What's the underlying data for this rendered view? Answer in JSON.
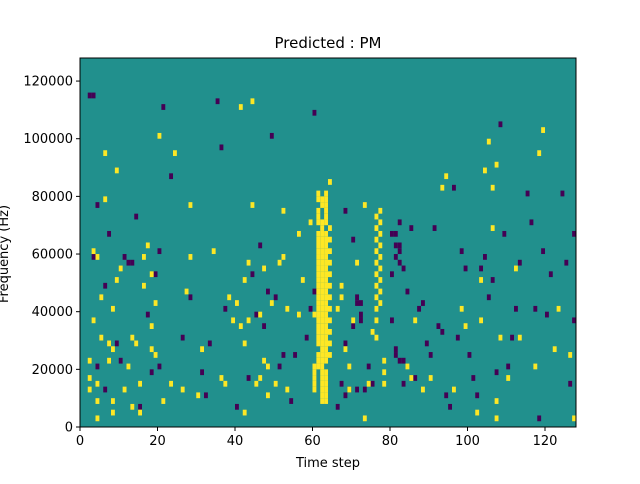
{
  "chart_data": {
    "type": "heatmap",
    "title": "Predicted : PM",
    "xlabel": "Time step",
    "ylabel": "Frequency (Hz)",
    "xlim": [
      0,
      128
    ],
    "ylim": [
      0,
      128000
    ],
    "x_ticks": [
      0,
      20,
      40,
      60,
      80,
      100,
      120
    ],
    "x_tick_labels": [
      "0",
      "20",
      "40",
      "60",
      "80",
      "100",
      "120"
    ],
    "y_ticks": [
      0,
      20000,
      40000,
      60000,
      80000,
      100000,
      120000
    ],
    "y_tick_labels": [
      "0",
      "20000",
      "40000",
      "60000",
      "80000",
      "100000",
      "120000"
    ],
    "grid": false,
    "legend": "none",
    "colors": {
      "background": "#21908d",
      "low": "#440154",
      "high": "#fde725"
    },
    "cell_width_steps": 1,
    "cell_height_hz": 2000,
    "yellow_cells": [
      [
        2,
        12
      ],
      [
        2,
        16
      ],
      [
        2,
        22
      ],
      [
        3,
        36
      ],
      [
        3,
        60
      ],
      [
        4,
        2
      ],
      [
        4,
        8
      ],
      [
        4,
        14
      ],
      [
        4,
        58
      ],
      [
        5,
        30
      ],
      [
        5,
        44
      ],
      [
        6,
        78
      ],
      [
        6,
        94
      ],
      [
        7,
        22
      ],
      [
        7,
        28
      ],
      [
        8,
        4
      ],
      [
        8,
        8
      ],
      [
        8,
        26
      ],
      [
        8,
        40
      ],
      [
        9,
        50
      ],
      [
        9,
        88
      ],
      [
        10,
        54
      ],
      [
        11,
        12
      ],
      [
        12,
        20
      ],
      [
        13,
        6
      ],
      [
        13,
        30
      ],
      [
        14,
        28
      ],
      [
        15,
        4
      ],
      [
        15,
        14
      ],
      [
        16,
        48
      ],
      [
        16,
        58
      ],
      [
        17,
        62
      ],
      [
        18,
        26
      ],
      [
        18,
        34
      ],
      [
        18,
        52
      ],
      [
        19,
        24
      ],
      [
        19,
        42
      ],
      [
        20,
        100
      ],
      [
        21,
        8
      ],
      [
        23,
        14
      ],
      [
        24,
        94
      ],
      [
        26,
        12
      ],
      [
        27,
        46
      ],
      [
        28,
        58
      ],
      [
        28,
        76
      ],
      [
        30,
        10
      ],
      [
        31,
        26
      ],
      [
        34,
        60
      ],
      [
        36,
        16
      ],
      [
        37,
        14
      ],
      [
        38,
        44
      ],
      [
        39,
        36
      ],
      [
        40,
        42
      ],
      [
        41,
        34
      ],
      [
        41,
        110
      ],
      [
        42,
        4
      ],
      [
        42,
        28
      ],
      [
        42,
        50
      ],
      [
        43,
        36
      ],
      [
        43,
        56
      ],
      [
        44,
        76
      ],
      [
        44,
        112
      ],
      [
        45,
        14
      ],
      [
        46,
        16
      ],
      [
        46,
        38
      ],
      [
        47,
        22
      ],
      [
        47,
        54
      ],
      [
        48,
        10
      ],
      [
        48,
        20
      ],
      [
        49,
        42
      ],
      [
        50,
        14
      ],
      [
        51,
        56
      ],
      [
        52,
        74
      ],
      [
        52,
        58
      ],
      [
        53,
        12
      ],
      [
        53,
        40
      ],
      [
        56,
        38
      ],
      [
        56,
        66
      ],
      [
        57,
        50
      ],
      [
        59,
        70
      ],
      [
        60,
        38
      ],
      [
        60,
        20
      ],
      [
        60,
        12
      ],
      [
        60,
        14
      ],
      [
        60,
        16
      ],
      [
        60,
        18
      ],
      [
        61,
        20
      ],
      [
        61,
        22
      ],
      [
        61,
        24
      ],
      [
        61,
        28
      ],
      [
        61,
        30
      ],
      [
        61,
        32
      ],
      [
        61,
        34
      ],
      [
        61,
        36
      ],
      [
        61,
        38
      ],
      [
        61,
        40
      ],
      [
        61,
        42
      ],
      [
        61,
        44
      ],
      [
        61,
        46
      ],
      [
        61,
        48
      ],
      [
        61,
        50
      ],
      [
        61,
        52
      ],
      [
        61,
        54
      ],
      [
        61,
        56
      ],
      [
        61,
        58
      ],
      [
        61,
        60
      ],
      [
        61,
        62
      ],
      [
        61,
        64
      ],
      [
        61,
        66
      ],
      [
        61,
        70
      ],
      [
        61,
        72
      ],
      [
        61,
        74
      ],
      [
        61,
        78
      ],
      [
        61,
        80
      ],
      [
        62,
        8
      ],
      [
        62,
        10
      ],
      [
        62,
        12
      ],
      [
        62,
        14
      ],
      [
        62,
        16
      ],
      [
        62,
        18
      ],
      [
        62,
        20
      ],
      [
        62,
        22
      ],
      [
        62,
        24
      ],
      [
        62,
        26
      ],
      [
        62,
        28
      ],
      [
        62,
        30
      ],
      [
        62,
        32
      ],
      [
        62,
        34
      ],
      [
        62,
        36
      ],
      [
        62,
        38
      ],
      [
        62,
        40
      ],
      [
        62,
        42
      ],
      [
        62,
        44
      ],
      [
        62,
        46
      ],
      [
        62,
        48
      ],
      [
        62,
        50
      ],
      [
        62,
        52
      ],
      [
        62,
        54
      ],
      [
        62,
        56
      ],
      [
        62,
        58
      ],
      [
        62,
        60
      ],
      [
        62,
        62
      ],
      [
        62,
        64
      ],
      [
        62,
        66
      ],
      [
        62,
        68
      ],
      [
        62,
        70
      ],
      [
        62,
        76
      ],
      [
        62,
        78
      ],
      [
        63,
        8
      ],
      [
        63,
        10
      ],
      [
        63,
        12
      ],
      [
        63,
        14
      ],
      [
        63,
        16
      ],
      [
        63,
        18
      ],
      [
        63,
        22
      ],
      [
        63,
        24
      ],
      [
        63,
        26
      ],
      [
        63,
        28
      ],
      [
        63,
        30
      ],
      [
        63,
        32
      ],
      [
        63,
        34
      ],
      [
        63,
        36
      ],
      [
        63,
        38
      ],
      [
        63,
        40
      ],
      [
        63,
        42
      ],
      [
        63,
        44
      ],
      [
        63,
        46
      ],
      [
        63,
        48
      ],
      [
        63,
        50
      ],
      [
        63,
        52
      ],
      [
        63,
        54
      ],
      [
        63,
        56
      ],
      [
        63,
        58
      ],
      [
        63,
        60
      ],
      [
        63,
        62
      ],
      [
        63,
        64
      ],
      [
        63,
        66
      ],
      [
        63,
        70
      ],
      [
        63,
        72
      ],
      [
        63,
        74
      ],
      [
        63,
        76
      ],
      [
        63,
        78
      ],
      [
        63,
        80
      ],
      [
        64,
        24
      ],
      [
        64,
        28
      ],
      [
        64,
        32
      ],
      [
        64,
        36
      ],
      [
        64,
        40
      ],
      [
        64,
        44
      ],
      [
        64,
        48
      ],
      [
        64,
        52
      ],
      [
        64,
        56
      ],
      [
        64,
        60
      ],
      [
        64,
        64
      ],
      [
        64,
        68
      ],
      [
        64,
        84
      ],
      [
        66,
        40
      ],
      [
        67,
        44
      ],
      [
        67,
        48
      ],
      [
        68,
        26
      ],
      [
        69,
        12
      ],
      [
        69,
        20
      ],
      [
        70,
        36
      ],
      [
        71,
        56
      ],
      [
        73,
        2
      ],
      [
        73,
        76
      ],
      [
        74,
        14
      ],
      [
        75,
        32
      ],
      [
        76,
        30
      ],
      [
        76,
        36
      ],
      [
        76,
        40
      ],
      [
        76,
        44
      ],
      [
        76,
        48
      ],
      [
        76,
        52
      ],
      [
        76,
        56
      ],
      [
        76,
        60
      ],
      [
        76,
        64
      ],
      [
        76,
        68
      ],
      [
        76,
        72
      ],
      [
        77,
        42
      ],
      [
        77,
        46
      ],
      [
        77,
        50
      ],
      [
        77,
        54
      ],
      [
        77,
        58
      ],
      [
        77,
        62
      ],
      [
        77,
        66
      ],
      [
        77,
        70
      ],
      [
        77,
        74
      ],
      [
        78,
        22
      ],
      [
        78,
        18
      ],
      [
        78,
        14
      ],
      [
        84,
        20
      ],
      [
        85,
        16
      ],
      [
        86,
        36
      ],
      [
        88,
        12
      ],
      [
        90,
        16
      ],
      [
        93,
        82
      ],
      [
        94,
        86
      ],
      [
        96,
        12
      ],
      [
        98,
        40
      ],
      [
        99,
        34
      ],
      [
        102,
        4
      ],
      [
        103,
        50
      ],
      [
        103,
        36
      ],
      [
        104,
        88
      ],
      [
        105,
        98
      ],
      [
        106,
        68
      ],
      [
        106,
        82
      ],
      [
        107,
        90
      ],
      [
        107,
        2
      ],
      [
        107,
        8
      ],
      [
        108,
        30
      ],
      [
        110,
        16
      ],
      [
        112,
        54
      ],
      [
        113,
        30
      ],
      [
        117,
        20
      ],
      [
        118,
        94
      ],
      [
        119,
        102
      ],
      [
        122,
        26
      ],
      [
        123,
        40
      ],
      [
        126,
        24
      ],
      [
        127,
        2
      ]
    ],
    "purple_cells": [
      [
        2,
        114
      ],
      [
        3,
        114
      ],
      [
        3,
        58
      ],
      [
        4,
        20
      ],
      [
        4,
        76
      ],
      [
        6,
        48
      ],
      [
        6,
        12
      ],
      [
        7,
        66
      ],
      [
        9,
        28
      ],
      [
        10,
        22
      ],
      [
        11,
        58
      ],
      [
        12,
        56
      ],
      [
        13,
        56
      ],
      [
        14,
        72
      ],
      [
        15,
        6
      ],
      [
        17,
        38
      ],
      [
        18,
        18
      ],
      [
        19,
        52
      ],
      [
        20,
        60
      ],
      [
        20,
        20
      ],
      [
        21,
        110
      ],
      [
        23,
        86
      ],
      [
        26,
        30
      ],
      [
        28,
        44
      ],
      [
        31,
        18
      ],
      [
        32,
        10
      ],
      [
        33,
        28
      ],
      [
        35,
        112
      ],
      [
        36,
        96
      ],
      [
        37,
        40
      ],
      [
        40,
        6
      ],
      [
        43,
        16
      ],
      [
        44,
        52
      ],
      [
        45,
        38
      ],
      [
        46,
        62
      ],
      [
        47,
        34
      ],
      [
        48,
        46
      ],
      [
        49,
        100
      ],
      [
        50,
        44
      ],
      [
        51,
        20
      ],
      [
        52,
        24
      ],
      [
        54,
        8
      ],
      [
        55,
        24
      ],
      [
        58,
        30
      ],
      [
        59,
        40
      ],
      [
        60,
        46
      ],
      [
        60,
        108
      ],
      [
        66,
        6
      ],
      [
        67,
        14
      ],
      [
        68,
        10
      ],
      [
        68,
        28
      ],
      [
        68,
        74
      ],
      [
        69,
        12
      ],
      [
        70,
        64
      ],
      [
        70,
        34
      ],
      [
        71,
        12
      ],
      [
        71,
        42
      ],
      [
        71,
        44
      ],
      [
        72,
        38
      ],
      [
        72,
        36
      ],
      [
        72,
        42
      ],
      [
        73,
        12
      ],
      [
        74,
        20
      ],
      [
        75,
        14
      ],
      [
        80,
        66
      ],
      [
        80,
        52
      ],
      [
        80,
        36
      ],
      [
        81,
        58
      ],
      [
        81,
        62
      ],
      [
        81,
        66
      ],
      [
        81,
        24
      ],
      [
        81,
        26
      ],
      [
        82,
        22
      ],
      [
        82,
        60
      ],
      [
        82,
        56
      ],
      [
        82,
        62
      ],
      [
        82,
        70
      ],
      [
        83,
        14
      ],
      [
        83,
        22
      ],
      [
        83,
        54
      ],
      [
        84,
        46
      ],
      [
        85,
        68
      ],
      [
        86,
        16
      ],
      [
        87,
        40
      ],
      [
        88,
        42
      ],
      [
        89,
        28
      ],
      [
        90,
        24
      ],
      [
        91,
        68
      ],
      [
        92,
        34
      ],
      [
        93,
        32
      ],
      [
        94,
        10
      ],
      [
        95,
        6
      ],
      [
        96,
        82
      ],
      [
        97,
        30
      ],
      [
        98,
        60
      ],
      [
        99,
        54
      ],
      [
        100,
        24
      ],
      [
        101,
        16
      ],
      [
        102,
        10
      ],
      [
        103,
        54
      ],
      [
        104,
        58
      ],
      [
        105,
        44
      ],
      [
        106,
        50
      ],
      [
        107,
        18
      ],
      [
        108,
        104
      ],
      [
        109,
        66
      ],
      [
        110,
        20
      ],
      [
        111,
        30
      ],
      [
        112,
        40
      ],
      [
        113,
        56
      ],
      [
        115,
        80
      ],
      [
        116,
        70
      ],
      [
        117,
        40
      ],
      [
        118,
        2
      ],
      [
        119,
        60
      ],
      [
        120,
        38
      ],
      [
        121,
        52
      ],
      [
        124,
        80
      ],
      [
        125,
        56
      ],
      [
        126,
        14
      ],
      [
        127,
        66
      ],
      [
        127,
        36
      ]
    ]
  }
}
